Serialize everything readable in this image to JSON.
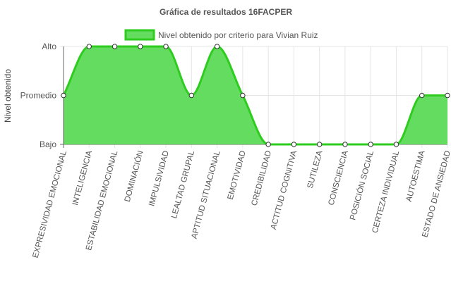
{
  "chart_data": {
    "type": "area",
    "title": "Gráfica de resultados 16FACPER",
    "ylabel": "Nivel obtenido",
    "xlabel": "",
    "y_levels": [
      "Bajo",
      "Promedio",
      "Alto"
    ],
    "ylim": [
      0,
      2
    ],
    "categories": [
      "EXPRESIVIDAD EMOCIONAL",
      "INTELIGENCIA",
      "ESTABILIDAD EMOCIONAL",
      "DOMINACIÓN",
      "IMPULSIVIDAD",
      "LEALTAD GRUPAL",
      "APTITUD SITUACIONAL",
      "EMOTIVIDAD",
      "CREDIBILIDAD",
      "ACTITUD COGNITIVA",
      "SUTILEZA",
      "CONSCIENCIA",
      "POSICIÓN SOCIAL",
      "CERTEZA INDIVIDUAL",
      "AUTOESTIMA",
      "ESTADO DE ANSIEDAD"
    ],
    "series": [
      {
        "name": "Nivel obtenido por criterio para Vivian Ruiz",
        "values": [
          1,
          2,
          2,
          2,
          2,
          1,
          2,
          1,
          0,
          0,
          0,
          0,
          0,
          0,
          1,
          1
        ]
      }
    ],
    "grid": true,
    "legend_position": "top",
    "colors": {
      "line": "#2ecc1f",
      "fill": "#64dc60",
      "point_fill": "#ffffff",
      "point_stroke": "#333333",
      "axis": "#666666",
      "grid": "#e5e5e5",
      "text": "#555555"
    }
  }
}
